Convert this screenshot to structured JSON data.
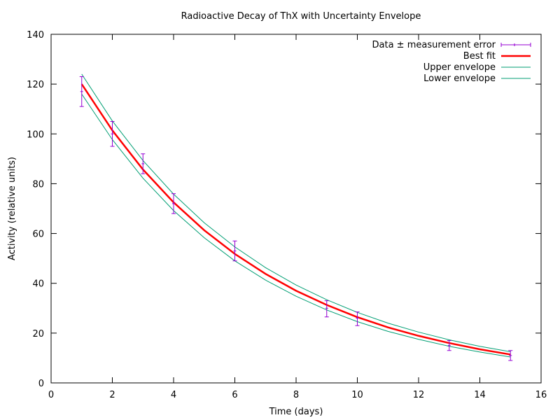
{
  "chart_data": {
    "type": "line",
    "title": "Radioactive Decay of ThX with Uncertainty Envelope",
    "xlabel": "Time (days)",
    "ylabel": "Activity (relative units)",
    "xlim": [
      0,
      16
    ],
    "ylim": [
      0,
      140
    ],
    "xticks": [
      0,
      2,
      4,
      6,
      8,
      10,
      12,
      14,
      16
    ],
    "yticks": [
      0,
      20,
      40,
      60,
      80,
      100,
      120,
      140
    ],
    "grid": false,
    "legend_position": "top-right",
    "series": [
      {
        "name": "Data ± measurement error",
        "style": "errorbars",
        "color": "#9400d3",
        "x": [
          1,
          2,
          3,
          4,
          6,
          9,
          10,
          13,
          15
        ],
        "y": [
          117,
          100,
          88,
          72,
          53,
          30,
          26,
          15,
          11
        ],
        "yerr_low": [
          6,
          5,
          4,
          4,
          4,
          3.5,
          3,
          2,
          2
        ],
        "yerr_high": [
          6,
          5,
          4,
          4,
          4,
          3,
          2.5,
          2,
          2
        ]
      },
      {
        "name": "Best fit",
        "style": "curve",
        "color": "#ff0000",
        "x": [
          1,
          2,
          3,
          4,
          5,
          6,
          7,
          8,
          9,
          10,
          11,
          12,
          13,
          14,
          15
        ],
        "y": [
          120.0,
          101.4,
          85.7,
          72.5,
          61.3,
          51.8,
          43.8,
          37.0,
          31.3,
          26.4,
          22.3,
          18.9,
          16.0,
          13.5,
          11.4
        ]
      },
      {
        "name": "Upper envelope",
        "style": "curve",
        "color": "#009e73",
        "x": [
          1,
          2,
          3,
          4,
          5,
          6,
          7,
          8,
          9,
          10,
          11,
          12,
          13,
          14,
          15
        ],
        "y": [
          124.0,
          105.2,
          89.3,
          75.8,
          64.3,
          54.6,
          46.3,
          39.3,
          33.4,
          28.3,
          24.0,
          20.4,
          17.3,
          14.7,
          12.5
        ]
      },
      {
        "name": "Lower envelope",
        "style": "curve",
        "color": "#009e73",
        "x": [
          1,
          2,
          3,
          4,
          5,
          6,
          7,
          8,
          9,
          10,
          11,
          12,
          13,
          14,
          15
        ],
        "y": [
          116.0,
          97.7,
          82.2,
          69.2,
          58.3,
          49.0,
          41.3,
          34.8,
          29.3,
          24.6,
          20.7,
          17.5,
          14.7,
          12.4,
          10.4
        ]
      }
    ]
  }
}
